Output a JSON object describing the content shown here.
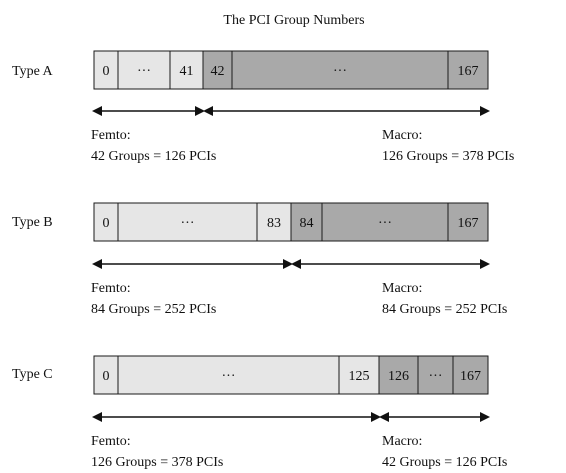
{
  "title": "The PCI Group Numbers",
  "colors": {
    "femto": "#e6e6e6",
    "macro": "#a9a9a9",
    "border": "#1a1a1a"
  },
  "types": [
    {
      "label": "Type A",
      "cells": [
        {
          "text": "0",
          "kind": "femto"
        },
        {
          "text": "···",
          "kind": "femto"
        },
        {
          "text": "41",
          "kind": "femto"
        },
        {
          "text": "42",
          "kind": "macro"
        },
        {
          "text": "···",
          "kind": "macro"
        },
        {
          "text": "167",
          "kind": "macro"
        }
      ],
      "femto": {
        "label": "Femto:",
        "detail": "42 Groups = 126 PCIs"
      },
      "macro": {
        "label": "Macro:",
        "detail": "126 Groups = 378 PCIs"
      }
    },
    {
      "label": "Type B",
      "cells": [
        {
          "text": "0",
          "kind": "femto"
        },
        {
          "text": "···",
          "kind": "femto"
        },
        {
          "text": "83",
          "kind": "femto"
        },
        {
          "text": "84",
          "kind": "macro"
        },
        {
          "text": "···",
          "kind": "macro"
        },
        {
          "text": "167",
          "kind": "macro"
        }
      ],
      "femto": {
        "label": "Femto:",
        "detail": "84 Groups = 252 PCIs"
      },
      "macro": {
        "label": "Macro:",
        "detail": "84 Groups = 252 PCIs"
      }
    },
    {
      "label": "Type C",
      "cells": [
        {
          "text": "0",
          "kind": "femto"
        },
        {
          "text": "···",
          "kind": "femto"
        },
        {
          "text": "125",
          "kind": "femto"
        },
        {
          "text": "126",
          "kind": "macro"
        },
        {
          "text": "···",
          "kind": "macro"
        },
        {
          "text": "167",
          "kind": "macro"
        }
      ],
      "femto": {
        "label": "Femto:",
        "detail": "126 Groups = 378 PCIs"
      },
      "macro": {
        "label": "Macro:",
        "detail": "42 Groups = 126 PCIs"
      }
    }
  ]
}
